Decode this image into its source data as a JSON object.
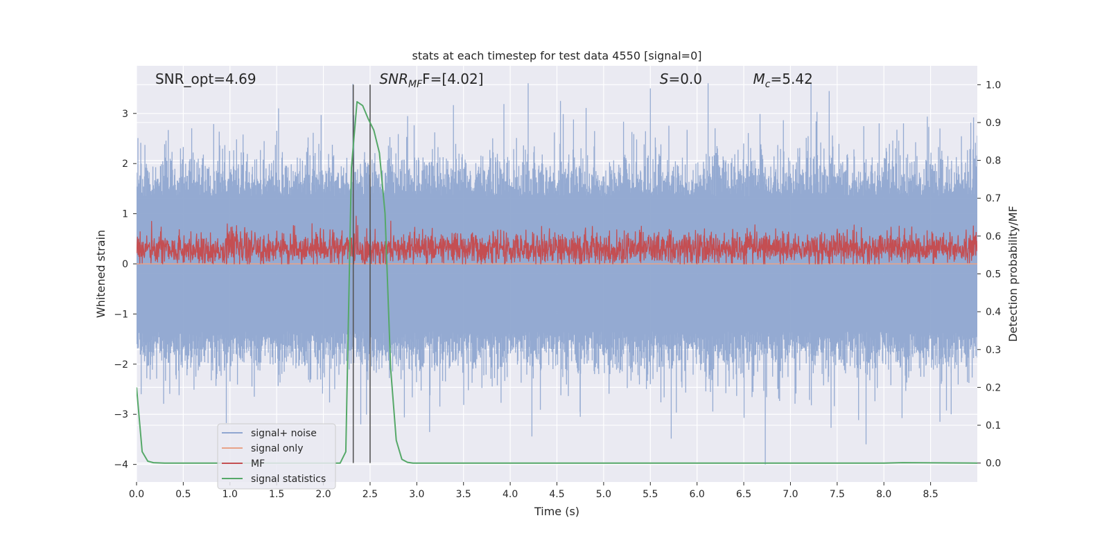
{
  "chart_data": {
    "type": "line",
    "title": "stats at each timestep for test data 4550 [signal=0]",
    "xlabel": "Time (s)",
    "ylabel": "Whitened strain",
    "ylabel_right": "Detection probability/MF",
    "xlim": [
      0,
      9
    ],
    "ylim": [
      -4.35,
      3.95
    ],
    "ylim_right": [
      -0.05,
      1.05
    ],
    "x_ticks": [
      0.0,
      0.5,
      1.0,
      1.5,
      2.0,
      2.5,
      3.0,
      3.5,
      4.0,
      4.5,
      5.0,
      5.5,
      6.0,
      6.5,
      7.0,
      7.5,
      8.0,
      8.5
    ],
    "x_tick_labels": [
      "0.0",
      "0.5",
      "1.0",
      "1.5",
      "2.0",
      "2.5",
      "3.0",
      "3.5",
      "4.0",
      "4.5",
      "5.0",
      "5.5",
      "6.0",
      "6.5",
      "7.0",
      "7.5",
      "8.0",
      "8.5"
    ],
    "y_ticks": [
      -4,
      -3,
      -2,
      -1,
      0,
      1,
      2,
      3
    ],
    "y_tick_labels": [
      "−4",
      "−3",
      "−2",
      "−1",
      "0",
      "1",
      "2",
      "3"
    ],
    "y_right_ticks": [
      0.0,
      0.1,
      0.2,
      0.3,
      0.4,
      0.5,
      0.6,
      0.7,
      0.8,
      0.9,
      1.0
    ],
    "y_right_tick_labels": [
      "0.0",
      "0.1",
      "0.2",
      "0.3",
      "0.4",
      "0.5",
      "0.6",
      "0.7",
      "0.8",
      "0.9",
      "1.0"
    ],
    "grid": true,
    "legend_position": "lower-left",
    "series": [
      {
        "name": "signal+ noise",
        "color": "#8fa6d0",
        "axis": "left",
        "description_values": {
          "envelope_upper_mean": 1.7,
          "envelope_lower_mean": -1.7,
          "peak_max": 3.6,
          "peak_min": -4.0
        }
      },
      {
        "name": "signal only",
        "color": "#e8a287",
        "axis": "left",
        "x": [
          0,
          9
        ],
        "y": [
          0.0,
          0.0
        ]
      },
      {
        "name": "MF",
        "color": "#c44e52",
        "axis": "left",
        "description_values": {
          "mean": 0.3,
          "min": 0.0,
          "max": 1.0
        }
      },
      {
        "name": "signal statistics",
        "color": "#55a868",
        "axis": "right",
        "x": [
          0.0,
          0.06,
          0.12,
          0.18,
          0.3,
          0.5,
          1.0,
          1.5,
          2.0,
          2.18,
          2.24,
          2.3,
          2.36,
          2.42,
          2.48,
          2.54,
          2.6,
          2.66,
          2.72,
          2.78,
          2.84,
          2.9,
          2.96,
          3.0,
          4.0,
          5.0,
          6.0,
          7.0,
          8.0,
          8.2,
          9.0
        ],
        "y": [
          0.2,
          0.03,
          0.005,
          0.001,
          0.0,
          0.0,
          0.0,
          0.0,
          0.0,
          0.0,
          0.03,
          0.78,
          0.955,
          0.945,
          0.91,
          0.88,
          0.82,
          0.66,
          0.25,
          0.06,
          0.01,
          0.002,
          0.0,
          0.0,
          0.0,
          0.0,
          0.0,
          0.0,
          0.0,
          0.001,
          0.0
        ]
      }
    ],
    "vlines": [
      2.32,
      2.5
    ],
    "vline_color": "#555555",
    "annotations": [
      {
        "id": "snr_opt",
        "text": "SNR_opt=4.69",
        "x": 0.2
      },
      {
        "id": "snr_mf_prefix",
        "text": "SNR",
        "sub": "MF",
        "suffix": "F=[4.02]",
        "x": 2.6
      },
      {
        "id": "s_value",
        "text": "S",
        "suffix": "=0.0",
        "x": 5.6
      },
      {
        "id": "mc_value",
        "text": "M",
        "sub": "c",
        "suffix": "=5.42",
        "x": 6.6
      }
    ]
  },
  "colors": {
    "plot_bg": "#eaeaf2",
    "grid": "#ffffff",
    "legend_bg": "#eaeaf2",
    "legend_border": "#cccccc"
  }
}
